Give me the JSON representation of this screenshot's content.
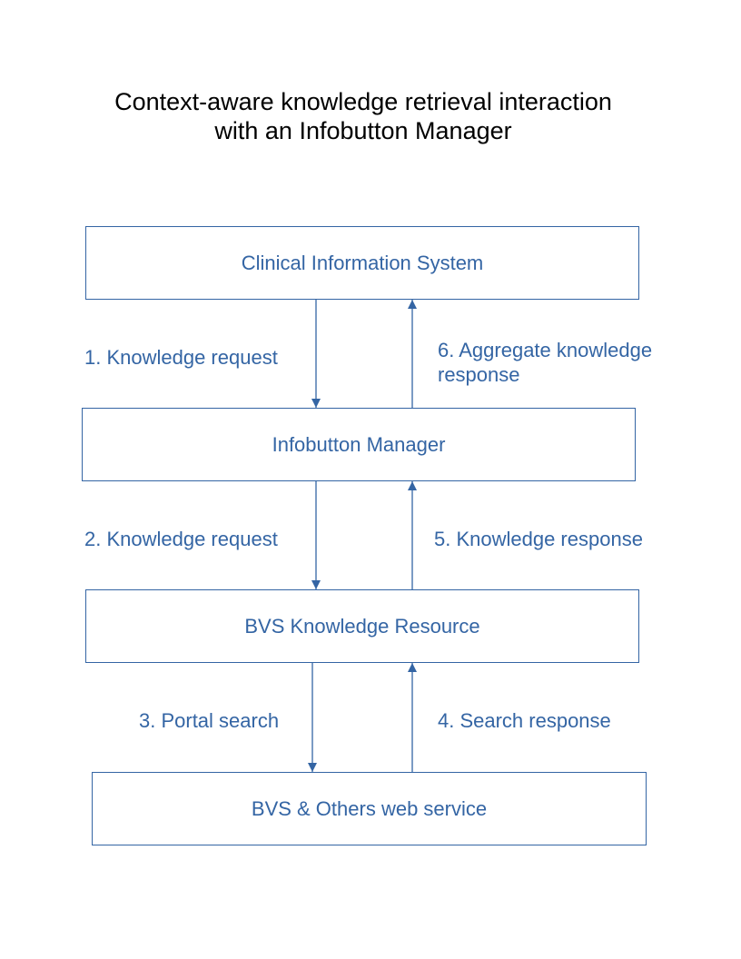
{
  "title": {
    "line1": "Context-aware knowledge retrieval interaction",
    "line2": "with an Infobutton Manager"
  },
  "colors": {
    "accent": "#3465a4",
    "title": "#000000",
    "background": "#ffffff"
  },
  "nodes": {
    "clinical": "Clinical Information System",
    "infobutton": "Infobutton Manager",
    "bvs_resource": "BVS Knowledge Resource",
    "web_service": "BVS & Others web service"
  },
  "edges": {
    "step1": "1. Knowledge request",
    "step2": "2. Knowledge request",
    "step3": "3. Portal search",
    "step4": "4. Search response",
    "step5": "5. Knowledge response",
    "step6_line1": "6. Aggregate knowledge",
    "step6_line2": "response"
  }
}
